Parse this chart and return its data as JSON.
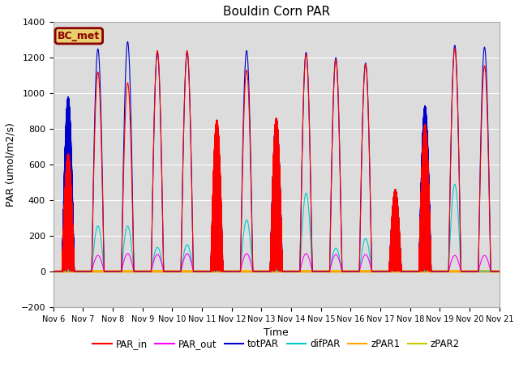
{
  "title": "Bouldin Corn PAR",
  "xlabel": "Time",
  "ylabel": "PAR (umol/m2/s)",
  "ylim": [
    -200,
    1400
  ],
  "background_color": "#dcdcdc",
  "fig_facecolor": "#ffffff",
  "legend_label": "BC_met",
  "legend_label_color": "#8b0000",
  "legend_label_bg": "#e8d070",
  "series": {
    "PAR_in": {
      "color": "#ff0000",
      "lw": 0.8
    },
    "PAR_out": {
      "color": "#ff00ff",
      "lw": 0.8
    },
    "totPAR": {
      "color": "#0000cc",
      "lw": 0.8
    },
    "difPAR": {
      "color": "#00cccc",
      "lw": 0.8
    },
    "zPAR1": {
      "color": "#ffa500",
      "lw": 2.0
    },
    "zPAR2": {
      "color": "#cccc00",
      "lw": 2.0
    }
  },
  "tick_labels": [
    "Nov 6",
    "Nov 7",
    "Nov 8",
    "Nov 9",
    "Nov 10",
    "Nov 11",
    "Nov 12",
    "Nov 13",
    "Nov 14",
    "Nov 15",
    "Nov 16",
    "Nov 17",
    "Nov 18",
    "Nov 19",
    "Nov 20",
    "Nov 21"
  ],
  "n_days": 15,
  "day_peaks": {
    "totPAR": [
      980,
      1250,
      1290,
      1230,
      1230,
      800,
      1240,
      860,
      1230,
      1200,
      1170,
      460,
      930,
      1270,
      1260
    ],
    "PAR_in": [
      660,
      1120,
      1060,
      1240,
      1240,
      850,
      1130,
      860,
      1220,
      1190,
      1165,
      460,
      825,
      1250,
      1155
    ],
    "PAR_out": [
      100,
      90,
      100,
      95,
      100,
      60,
      100,
      30,
      100,
      95,
      95,
      40,
      60,
      90,
      90
    ],
    "difPAR": [
      490,
      255,
      255,
      135,
      150,
      490,
      290,
      855,
      440,
      130,
      185,
      430,
      500,
      490,
      0
    ]
  },
  "cloudy_days": [
    0,
    5,
    7,
    11,
    12
  ]
}
